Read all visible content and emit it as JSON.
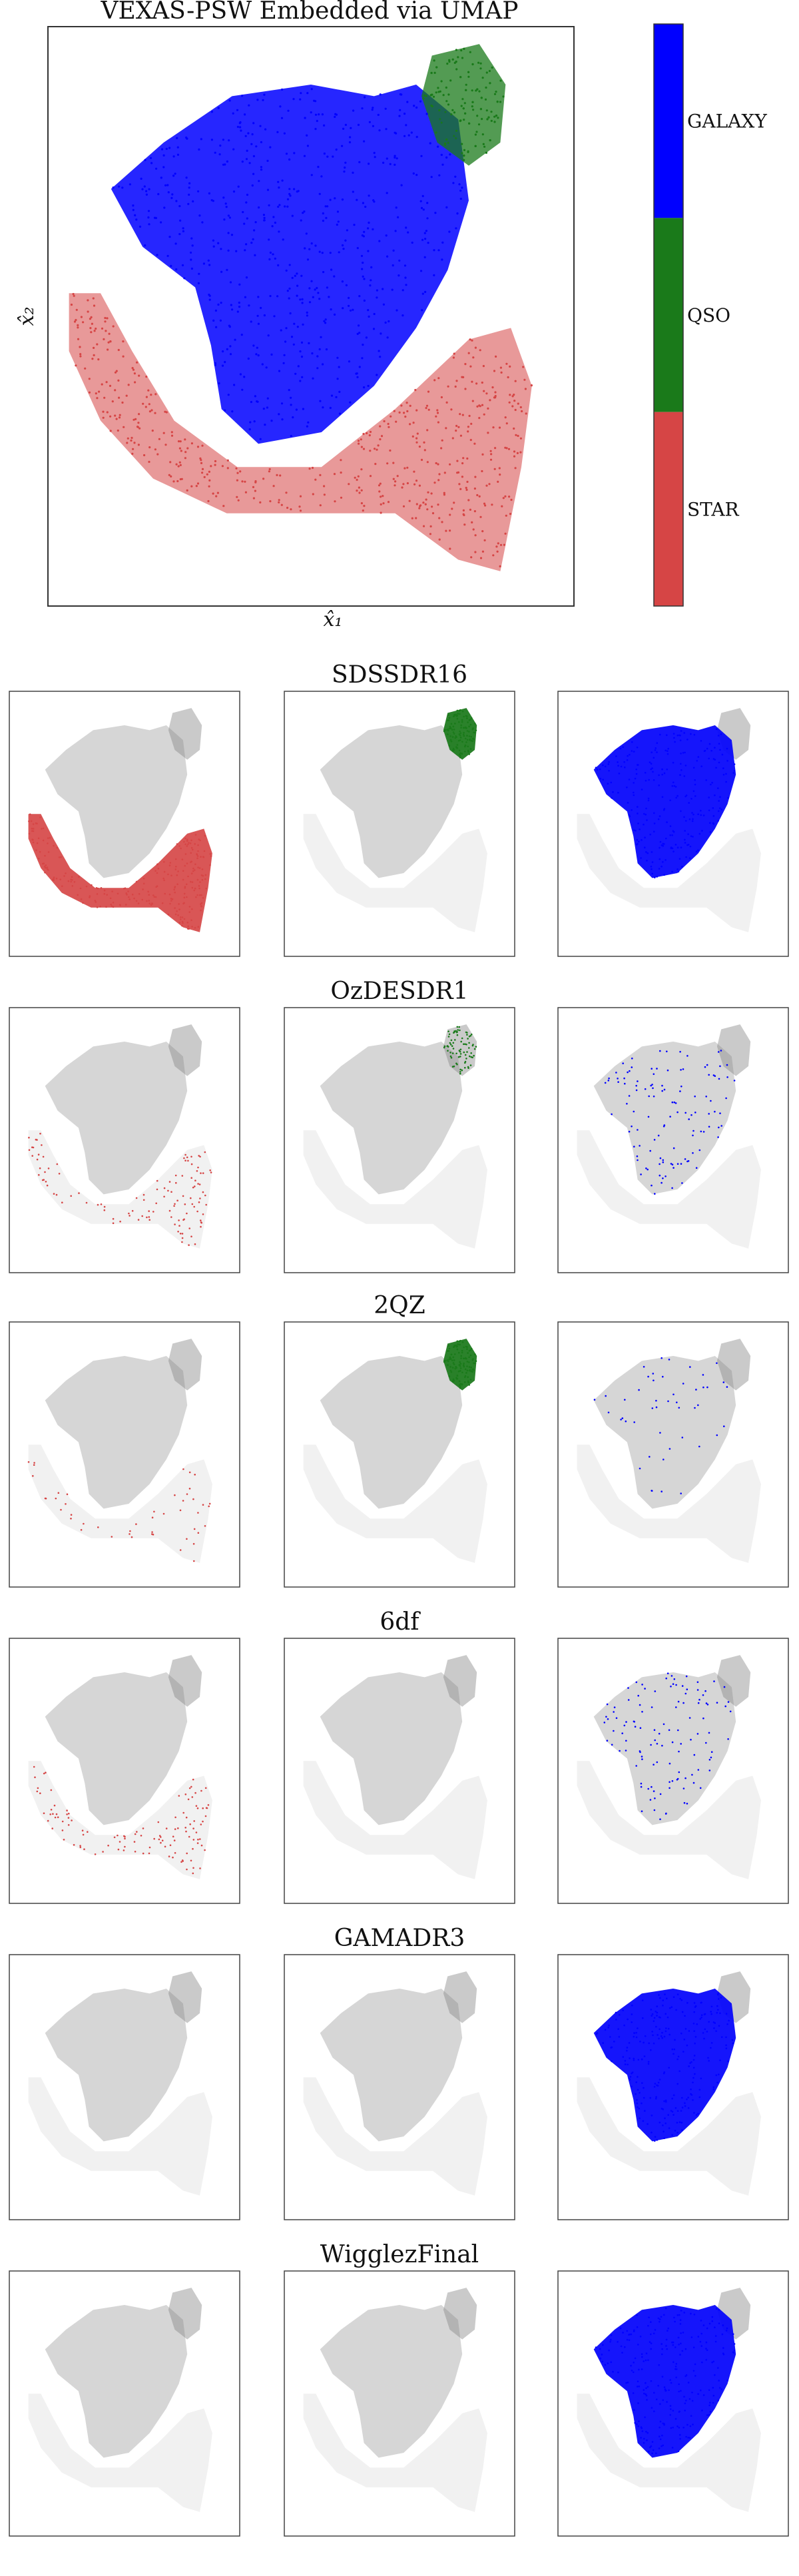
{
  "colors": {
    "GALAXY": "#0000ff",
    "QSO": "#1a7a1a",
    "STAR": "#d64545",
    "background_points": "#8a8a8a"
  },
  "main": {
    "title": "VEXAS-PSW Embedded via UMAP",
    "xlabel": "x̂₁",
    "ylabel": "x̂₂"
  },
  "colorbar": {
    "labels": [
      "GALAXY",
      "QSO",
      "STAR"
    ]
  },
  "surveys": [
    {
      "name": "SDSSDR16",
      "coverage": {
        "STAR": "dense",
        "QSO": "dense",
        "GALAXY": "dense"
      }
    },
    {
      "name": "OzDESDR1",
      "coverage": {
        "STAR": "medium",
        "QSO": "medium",
        "GALAXY": "medium"
      }
    },
    {
      "name": "2QZ",
      "coverage": {
        "STAR": "sparse",
        "QSO": "dense",
        "GALAXY": "sparse"
      }
    },
    {
      "name": "6df",
      "coverage": {
        "STAR": "medium",
        "QSO": "none",
        "GALAXY": "medium"
      }
    },
    {
      "name": "GAMADR3",
      "coverage": {
        "STAR": "none",
        "QSO": "none",
        "GALAXY": "dense"
      }
    },
    {
      "name": "WigglezFinal",
      "coverage": {
        "STAR": "none",
        "QSO": "none",
        "GALAXY": "dense"
      }
    }
  ],
  "chart_data": [
    {
      "type": "scatter",
      "title": "VEXAS-PSW Embedded via UMAP",
      "xlabel": "x̂₁",
      "ylabel": "x̂₂",
      "series": [
        {
          "name": "GALAXY"
        },
        {
          "name": "QSO"
        },
        {
          "name": "STAR"
        }
      ],
      "grid": false,
      "legend": "colorbar-right"
    },
    {
      "type": "scatter",
      "title": "SDSSDR16",
      "panels": [
        "STAR",
        "QSO",
        "GALAXY"
      ]
    },
    {
      "type": "scatter",
      "title": "OzDESDR1",
      "panels": [
        "STAR",
        "QSO",
        "GALAXY"
      ]
    },
    {
      "type": "scatter",
      "title": "2QZ",
      "panels": [
        "STAR",
        "QSO",
        "GALAXY"
      ]
    },
    {
      "type": "scatter",
      "title": "6df",
      "panels": [
        "STAR",
        "QSO",
        "GALAXY"
      ]
    },
    {
      "type": "scatter",
      "title": "GAMADR3",
      "panels": [
        "STAR",
        "QSO",
        "GALAXY"
      ]
    },
    {
      "type": "scatter",
      "title": "WigglezFinal",
      "panels": [
        "STAR",
        "QSO",
        "GALAXY"
      ]
    }
  ]
}
